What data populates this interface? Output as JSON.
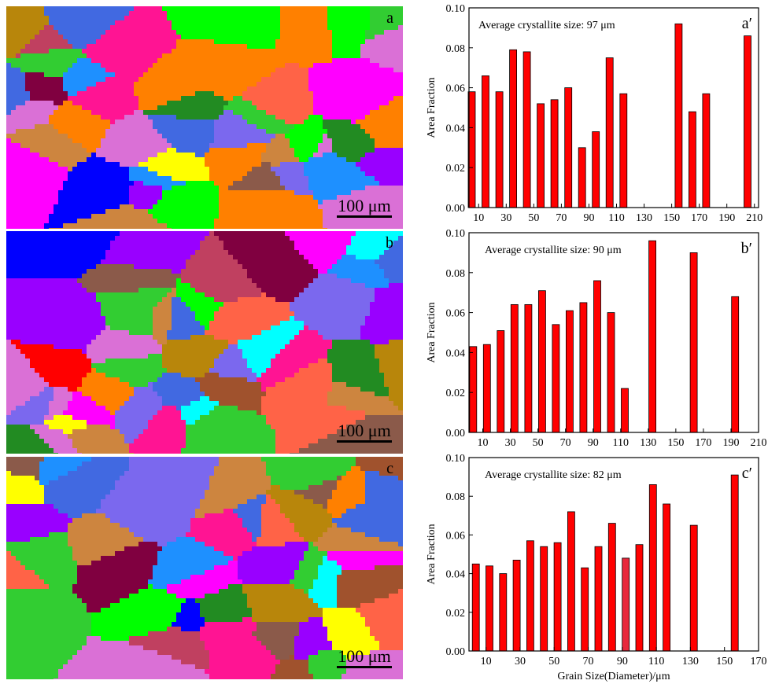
{
  "maps": [
    {
      "label": "a",
      "scale": "100 μm"
    },
    {
      "label": "b",
      "scale": "100 μm"
    },
    {
      "label": "c",
      "scale": "100 μm"
    }
  ],
  "colors": {
    "bar": "#ff0000",
    "bar_c_highlight": "#e8283c",
    "grain_palette": [
      "#ff0000",
      "#00ff00",
      "#0000ff",
      "#ff00ff",
      "#00ffff",
      "#ffff00",
      "#ff8000",
      "#9900ff",
      "#8b5a4a",
      "#a0522d",
      "#cd853f",
      "#ff1493",
      "#228b22",
      "#4169e1",
      "#800040",
      "#ff6347",
      "#32cd32",
      "#1e90ff",
      "#da70d6",
      "#c04060",
      "#7b68ee",
      "#b8860b"
    ]
  },
  "chart_data": [
    {
      "type": "bar",
      "panel_label": "a′",
      "annotation": "Average crystallite size: 97 μm",
      "ylabel": "Area Fraction",
      "xlabel": "",
      "ylim": [
        0,
        0.1
      ],
      "yticks": [
        "0.00",
        "0.02",
        "0.04",
        "0.06",
        "0.08",
        "0.10"
      ],
      "xlim": [
        3,
        213
      ],
      "xticks": [
        "10",
        "30",
        "50",
        "70",
        "90",
        "110",
        "130",
        "150",
        "170",
        "190",
        "210"
      ],
      "x": [
        5,
        15,
        25,
        35,
        45,
        55,
        65,
        75,
        85,
        95,
        105,
        115,
        155,
        165,
        175,
        205
      ],
      "values": [
        0.058,
        0.066,
        0.058,
        0.079,
        0.078,
        0.052,
        0.054,
        0.06,
        0.03,
        0.038,
        0.075,
        0.057,
        0.092,
        0.048,
        0.057,
        0.086
      ]
    },
    {
      "type": "bar",
      "panel_label": "b′",
      "annotation": "Average crystallite size: 90 μm",
      "ylabel": "Area Fraction",
      "xlabel": "",
      "ylim": [
        0,
        0.1
      ],
      "yticks": [
        "0.00",
        "0.02",
        "0.04",
        "0.06",
        "0.08",
        "0.10"
      ],
      "xlim": [
        0,
        210
      ],
      "xticks": [
        "10",
        "30",
        "50",
        "70",
        "90",
        "110",
        "130",
        "150",
        "170",
        "190",
        "210"
      ],
      "x": [
        3,
        13,
        23,
        33,
        43,
        53,
        63,
        73,
        83,
        93,
        103,
        113,
        133,
        163,
        193
      ],
      "values": [
        0.043,
        0.044,
        0.051,
        0.064,
        0.064,
        0.071,
        0.054,
        0.061,
        0.065,
        0.076,
        0.06,
        0.022,
        0.096,
        0.09,
        0.068
      ]
    },
    {
      "type": "bar",
      "panel_label": "c′",
      "annotation": "Average crystallite size: 82 μm",
      "ylabel": "Area Fraction",
      "xlabel": "Grain Size(Diameter)/μm",
      "ylim": [
        0,
        0.1
      ],
      "yticks": [
        "0.00",
        "0.02",
        "0.04",
        "0.06",
        "0.08",
        "0.10"
      ],
      "xlim": [
        0,
        170
      ],
      "xticks": [
        "10",
        "30",
        "50",
        "70",
        "90",
        "110",
        "130",
        "150",
        "170"
      ],
      "x": [
        4,
        12,
        20,
        28,
        36,
        44,
        52,
        60,
        68,
        76,
        84,
        92,
        100,
        108,
        116,
        132,
        156
      ],
      "values": [
        0.045,
        0.044,
        0.04,
        0.047,
        0.057,
        0.054,
        0.056,
        0.072,
        0.043,
        0.054,
        0.066,
        0.048,
        0.055,
        0.086,
        0.076,
        0.065,
        0.091
      ],
      "highlight_index": 11
    }
  ]
}
